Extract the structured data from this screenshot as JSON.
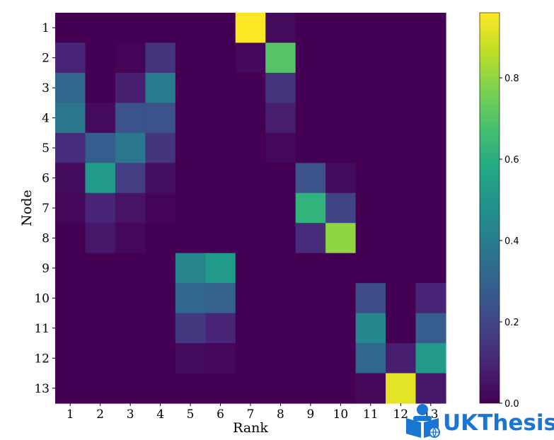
{
  "chart_data": {
    "type": "heatmap",
    "title": "",
    "xlabel": "Rank",
    "ylabel": "Node",
    "x_categories": [
      "1",
      "2",
      "3",
      "4",
      "5",
      "6",
      "7",
      "8",
      "9",
      "10",
      "11",
      "12",
      "13"
    ],
    "y_categories": [
      "1",
      "2",
      "3",
      "4",
      "5",
      "6",
      "7",
      "8",
      "9",
      "10",
      "11",
      "12",
      "13"
    ],
    "colormap": "viridis",
    "value_range": [
      0.0,
      0.96
    ],
    "colorbar": {
      "ticks": [
        0.0,
        0.2,
        0.4,
        0.6,
        0.8
      ],
      "tick_labels": [
        "0.0",
        "0.2",
        "0.4",
        "0.6",
        "0.8"
      ]
    },
    "values": [
      [
        0.0,
        0.0,
        0.0,
        0.0,
        0.0,
        0.0,
        0.96,
        0.03,
        0.0,
        0.0,
        0.0,
        0.0,
        0.0
      ],
      [
        0.1,
        0.0,
        0.01,
        0.14,
        0.0,
        0.0,
        0.02,
        0.7,
        0.0,
        0.0,
        0.0,
        0.0,
        0.0
      ],
      [
        0.32,
        0.0,
        0.08,
        0.4,
        0.0,
        0.0,
        0.0,
        0.14,
        0.0,
        0.0,
        0.0,
        0.0,
        0.0
      ],
      [
        0.38,
        0.03,
        0.24,
        0.24,
        0.0,
        0.0,
        0.0,
        0.08,
        0.0,
        0.0,
        0.0,
        0.0,
        0.0
      ],
      [
        0.12,
        0.28,
        0.38,
        0.14,
        0.0,
        0.0,
        0.0,
        0.02,
        0.0,
        0.0,
        0.0,
        0.0,
        0.0
      ],
      [
        0.03,
        0.52,
        0.17,
        0.04,
        0.0,
        0.0,
        0.0,
        0.0,
        0.24,
        0.03,
        0.0,
        0.0,
        0.0
      ],
      [
        0.02,
        0.1,
        0.05,
        0.01,
        0.0,
        0.0,
        0.0,
        0.0,
        0.62,
        0.19,
        0.0,
        0.0,
        0.0
      ],
      [
        0.0,
        0.06,
        0.02,
        0.0,
        0.0,
        0.0,
        0.0,
        0.0,
        0.12,
        0.8,
        0.0,
        0.0,
        0.0
      ],
      [
        0.0,
        0.0,
        0.0,
        0.0,
        0.43,
        0.52,
        0.0,
        0.0,
        0.0,
        0.0,
        0.0,
        0.0,
        0.0
      ],
      [
        0.0,
        0.0,
        0.0,
        0.0,
        0.32,
        0.3,
        0.0,
        0.0,
        0.0,
        0.0,
        0.22,
        0.0,
        0.1
      ],
      [
        0.0,
        0.0,
        0.0,
        0.0,
        0.16,
        0.1,
        0.0,
        0.0,
        0.0,
        0.0,
        0.44,
        0.0,
        0.28
      ],
      [
        0.0,
        0.0,
        0.0,
        0.0,
        0.03,
        0.02,
        0.0,
        0.0,
        0.0,
        0.0,
        0.32,
        0.08,
        0.52
      ],
      [
        0.0,
        0.0,
        0.0,
        0.0,
        0.0,
        0.0,
        0.0,
        0.0,
        0.0,
        0.0,
        0.02,
        0.92,
        0.06
      ]
    ]
  },
  "watermark": {
    "text": "UKThesis",
    "color": "#1976d2",
    "icon": "reading-person-globe-icon"
  }
}
